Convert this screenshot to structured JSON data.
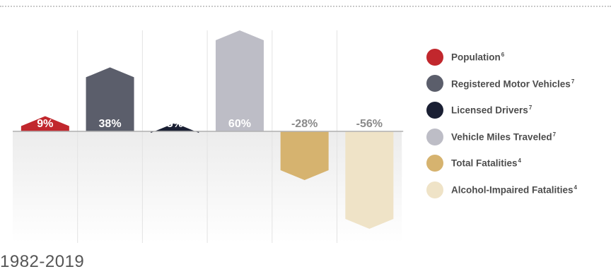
{
  "chart_data": {
    "type": "bar",
    "categories": [
      "Population",
      "Registered Motor Vehicles",
      "Licensed Drivers",
      "Vehicle Miles Traveled",
      "Total Fatalities",
      "Alcohol-Impaired Fatalities"
    ],
    "values": [
      9,
      38,
      5,
      60,
      -28,
      -56
    ],
    "value_labels": [
      "9%",
      "38%",
      "5%",
      "60%",
      "-28%",
      "-56%"
    ],
    "colors": [
      "#c1272d",
      "#5b5e6b",
      "#1a1f33",
      "#bdbdc6",
      "#d6b36f",
      "#efe3c7"
    ],
    "ylim": [
      -56,
      60
    ],
    "grid": true,
    "legend_position": "right"
  },
  "legend": [
    {
      "label": "Population",
      "sup": "6",
      "color": "#c1272d",
      "icon": "circle-icon"
    },
    {
      "label": "Registered Motor Vehicles",
      "sup": "7",
      "color": "#5b5e6b",
      "icon": "circle-icon"
    },
    {
      "label": "Licensed Drivers",
      "sup": "7",
      "color": "#1a1f33",
      "icon": "circle-icon"
    },
    {
      "label": "Vehicle Miles Traveled",
      "sup": "7",
      "color": "#bdbdc6",
      "icon": "circle-icon"
    },
    {
      "label": "Total Fatalities",
      "sup": "4",
      "color": "#d6b36f",
      "icon": "circle-icon"
    },
    {
      "label": "Alcohol-Impaired Fatalities",
      "sup": "4",
      "color": "#efe3c7",
      "icon": "circle-icon"
    }
  ],
  "period": "1982-2019"
}
